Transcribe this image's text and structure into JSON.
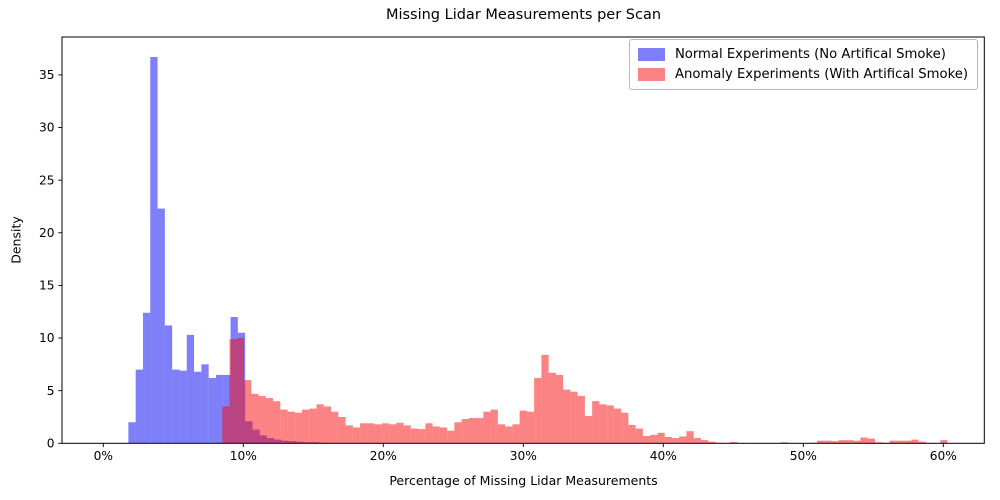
{
  "chart_data": {
    "type": "bar",
    "subtype": "overlaid-histograms",
    "title": "Missing Lidar Measurements per Scan",
    "xlabel": "Percentage of Missing Lidar Measurements",
    "ylabel": "Density",
    "x_unit": "percent",
    "xlim": [
      -3,
      63
    ],
    "ylim": [
      0,
      38.6
    ],
    "grid": false,
    "legend_position": "upper right",
    "fill_opacity": 0.5,
    "x_axis": {
      "tick_values": [
        0,
        10,
        20,
        30,
        40,
        50,
        60
      ],
      "tick_labels": [
        "0%",
        "10%",
        "20%",
        "30%",
        "40%",
        "50%",
        "60%"
      ]
    },
    "y_axis": {
      "tick_values": [
        0,
        5,
        10,
        15,
        20,
        25,
        30,
        35
      ],
      "tick_labels": [
        "0",
        "5",
        "10",
        "15",
        "20",
        "25",
        "30",
        "35"
      ]
    },
    "series": [
      {
        "name": "Normal Experiments (No Artifical Smoke)",
        "color": "#0000f3",
        "bin_start": 1.79,
        "bin_width": 0.5214,
        "densities": [
          2.0,
          7.0,
          12.4,
          36.7,
          22.3,
          11.2,
          7.0,
          6.9,
          10.3,
          6.8,
          7.5,
          6.2,
          6.5,
          6.5,
          12.0,
          10.5,
          2.1,
          1.3,
          0.75,
          0.5,
          0.35,
          0.25,
          0.2,
          0.15,
          0.1,
          0.1,
          0.05
        ]
      },
      {
        "name": "Anomaly Experiments (With Artifical Smoke)",
        "color": "#f70707",
        "bin_start": 8.5,
        "bin_width": 0.518,
        "densities": [
          3.5,
          9.9,
          10.0,
          6.0,
          4.7,
          4.5,
          4.3,
          4.0,
          3.2,
          3.0,
          2.9,
          3.2,
          3.3,
          3.7,
          3.5,
          3.0,
          2.5,
          1.7,
          1.5,
          1.9,
          1.9,
          1.8,
          1.9,
          1.8,
          1.95,
          1.7,
          1.4,
          1.35,
          1.9,
          1.6,
          1.5,
          1.2,
          2.0,
          2.3,
          2.4,
          2.4,
          3.0,
          3.2,
          1.8,
          1.6,
          1.8,
          3.1,
          3.0,
          6.2,
          8.4,
          6.7,
          6.5,
          5.1,
          4.9,
          4.5,
          2.6,
          4.0,
          3.7,
          3.6,
          3.3,
          2.9,
          1.75,
          1.4,
          0.7,
          0.8,
          1.0,
          0.6,
          0.5,
          0.65,
          1.15,
          0.5,
          0.3,
          0.15,
          0.05,
          0,
          0.12,
          0,
          0,
          0,
          0,
          0,
          0,
          0.1,
          0,
          0,
          0,
          0.05,
          0.25,
          0.25,
          0.2,
          0.3,
          0.3,
          0.25,
          0.55,
          0.45,
          0.1,
          0.05,
          0.25,
          0.25,
          0.25,
          0.35,
          0.15,
          0.05,
          0,
          0.3
        ]
      }
    ]
  }
}
